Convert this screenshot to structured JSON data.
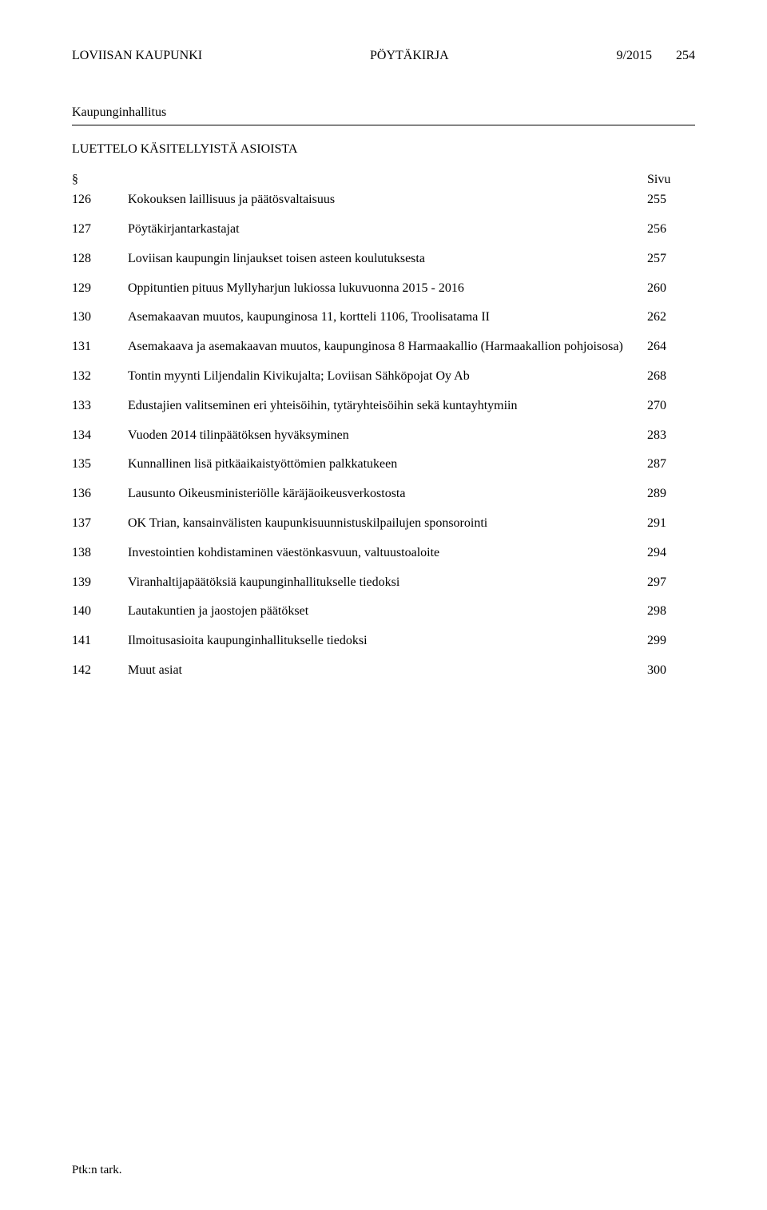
{
  "header": {
    "org": "LOVIISAN KAUPUNKI",
    "docType": "PÖYTÄKIRJA",
    "docNo": "9/2015",
    "pageNo": "254"
  },
  "section": {
    "title": "Kaupunginhallitus",
    "listHeading": "LUETTELO KÄSITELLYISTÄ ASIOISTA"
  },
  "columns": {
    "section": "§",
    "page": "Sivu"
  },
  "items": [
    {
      "num": "126",
      "desc": "Kokouksen laillisuus ja päätösvaltaisuus",
      "page": "255"
    },
    {
      "num": "127",
      "desc": "Pöytäkirjantarkastajat",
      "page": "256"
    },
    {
      "num": "128",
      "desc": "Loviisan kaupungin linjaukset toisen asteen koulutuksesta",
      "page": "257"
    },
    {
      "num": "129",
      "desc": "Oppituntien pituus Myllyharjun lukiossa lukuvuonna 2015 - 2016",
      "page": "260"
    },
    {
      "num": "130",
      "desc": "Asemakaavan muutos, kaupunginosa 11, kortteli 1106, Troolisatama II",
      "page": "262"
    },
    {
      "num": "131",
      "desc": "Asemakaava ja asemakaavan muutos, kaupunginosa 8 Harmaakallio (Harmaakallion pohjoisosa)",
      "page": "264"
    },
    {
      "num": "132",
      "desc": "Tontin myynti Liljendalin Kivikujalta; Loviisan Sähköpojat Oy Ab",
      "page": "268"
    },
    {
      "num": "133",
      "desc": "Edustajien valitseminen eri yhteisöihin, tytäryhteisöihin sekä kuntayhtymiin",
      "page": "270"
    },
    {
      "num": "134",
      "desc": "Vuoden 2014 tilinpäätöksen hyväksyminen",
      "page": "283"
    },
    {
      "num": "135",
      "desc": "Kunnallinen lisä pitkäaikaistyöttömien palkkatukeen",
      "page": "287"
    },
    {
      "num": "136",
      "desc": "Lausunto Oikeusministeriölle käräjäoikeusverkostosta",
      "page": "289"
    },
    {
      "num": "137",
      "desc": "OK Trian, kansainvälisten kaupunkisuunnistuskilpailujen sponsorointi",
      "page": "291"
    },
    {
      "num": "138",
      "desc": "Investointien kohdistaminen väestönkasvuun, valtuustoaloite",
      "page": "294"
    },
    {
      "num": "139",
      "desc": "Viranhaltijapäätöksiä kaupunginhallitukselle tiedoksi",
      "page": "297"
    },
    {
      "num": "140",
      "desc": "Lautakuntien ja jaostojen päätökset",
      "page": "298"
    },
    {
      "num": "141",
      "desc": "Ilmoitusasioita kaupunginhallitukselle tiedoksi",
      "page": "299"
    },
    {
      "num": "142",
      "desc": "Muut asiat",
      "page": "300"
    }
  ],
  "footer": "Ptk:n tark."
}
